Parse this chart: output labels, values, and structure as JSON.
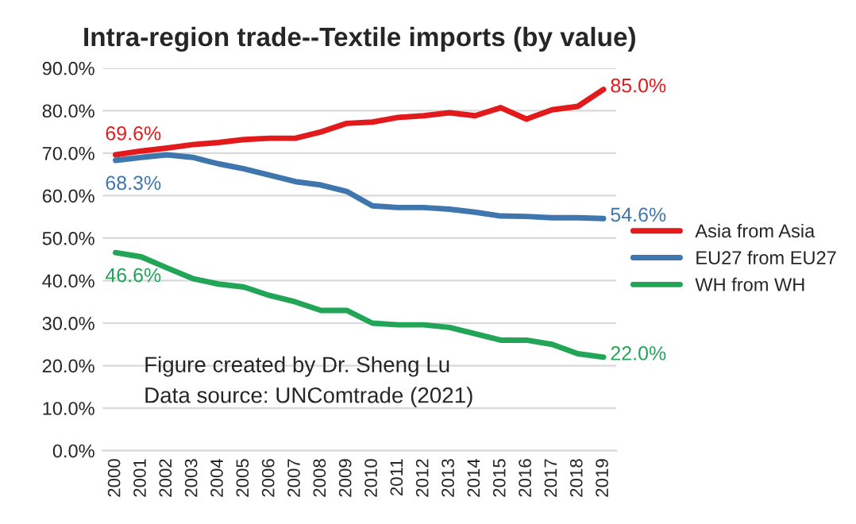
{
  "chart_data": {
    "type": "line",
    "title": "Intra-region trade--Textile imports (by value)",
    "categories": [
      "2000",
      "2001",
      "2002",
      "2003",
      "2004",
      "2005",
      "2006",
      "2007",
      "2008",
      "2009",
      "2010",
      "2011",
      "2012",
      "2013",
      "2014",
      "2015",
      "2016",
      "2017",
      "2018",
      "2019"
    ],
    "series": [
      {
        "name": "Asia from Asia",
        "color": "#e31a1c",
        "values": [
          69.6,
          70.5,
          71.2,
          72.0,
          72.5,
          73.2,
          73.5,
          73.5,
          75.0,
          77.0,
          77.3,
          78.4,
          78.8,
          79.5,
          78.8,
          80.7,
          78.0,
          80.2,
          81.0,
          85.0
        ],
        "value_labels": [
          "69.6%",
          null,
          null,
          null,
          null,
          null,
          null,
          null,
          null,
          null,
          null,
          null,
          null,
          null,
          null,
          null,
          null,
          null,
          null,
          "85.0%"
        ]
      },
      {
        "name": "EU27 from EU27",
        "color": "#3f76ad",
        "values": [
          68.3,
          69.0,
          69.6,
          69.0,
          67.5,
          66.3,
          64.8,
          63.3,
          62.5,
          61.0,
          57.6,
          57.2,
          57.2,
          56.8,
          56.1,
          55.2,
          55.1,
          54.8,
          54.8,
          54.6
        ],
        "value_labels": [
          "68.3%",
          null,
          null,
          null,
          null,
          null,
          null,
          null,
          null,
          null,
          null,
          null,
          null,
          null,
          null,
          null,
          null,
          null,
          null,
          "54.6%"
        ]
      },
      {
        "name": "WH from WH",
        "color": "#22a557",
        "values": [
          46.6,
          45.6,
          43.0,
          40.5,
          39.2,
          38.5,
          36.5,
          35.0,
          33.0,
          33.0,
          30.0,
          29.6,
          29.6,
          29.0,
          27.5,
          26.0,
          26.0,
          25.0,
          22.8,
          22.0
        ],
        "value_labels": [
          "46.6%",
          null,
          null,
          null,
          null,
          null,
          null,
          null,
          null,
          null,
          null,
          null,
          null,
          null,
          null,
          null,
          null,
          null,
          null,
          "22.0%"
        ]
      }
    ],
    "ylim": [
      0,
      90
    ],
    "yticks": [
      {
        "value": 0,
        "label": "0.0%"
      },
      {
        "value": 10,
        "label": "10.0%"
      },
      {
        "value": 20,
        "label": "20.0%"
      },
      {
        "value": 30,
        "label": "30.0%"
      },
      {
        "value": 40,
        "label": "40.0%"
      },
      {
        "value": 50,
        "label": "50.0%"
      },
      {
        "value": 60,
        "label": "60.0%"
      },
      {
        "value": 70,
        "label": "70.0%"
      },
      {
        "value": 80,
        "label": "80.0%"
      },
      {
        "value": 90,
        "label": "90.0%"
      }
    ],
    "grid": "y",
    "legend": "right",
    "marker": "none",
    "line_style": "solid",
    "annotations": [
      "Figure created by Dr. Sheng Lu",
      "Data source: UNComtrade (2021)"
    ]
  }
}
